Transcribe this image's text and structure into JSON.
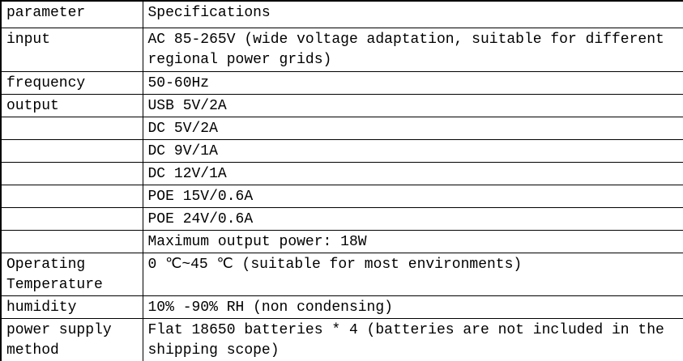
{
  "colors": {
    "background": "#ffffff",
    "border": "#000000",
    "text": "#000000"
  },
  "table": {
    "header": {
      "param": "parameter",
      "spec": "Specifications"
    },
    "rows": [
      {
        "param": "input",
        "spec": "AC 85-265V (wide voltage adaptation, suitable for different regional power grids)"
      },
      {
        "param": "frequency",
        "spec": "50-60Hz"
      },
      {
        "param": "output",
        "spec": "USB 5V/2A"
      },
      {
        "param": "",
        "spec": "DC 5V/2A"
      },
      {
        "param": "",
        "spec": "DC 9V/1A"
      },
      {
        "param": "",
        "spec": "DC 12V/1A"
      },
      {
        "param": "",
        "spec": "POE 15V/0.6A"
      },
      {
        "param": "",
        "spec": "POE 24V/0.6A"
      },
      {
        "param": "",
        "spec": "Maximum output power: 18W"
      },
      {
        "param": "Operating Temperature",
        "spec": "0 ℃~45 ℃ (suitable for most environments)"
      },
      {
        "param": "humidity",
        "spec": "10% -90% RH (non condensing)"
      },
      {
        "param": "power supply method",
        "spec": "Flat 18650 batteries * 4 (batteries are not included in the shipping scope)"
      }
    ]
  }
}
